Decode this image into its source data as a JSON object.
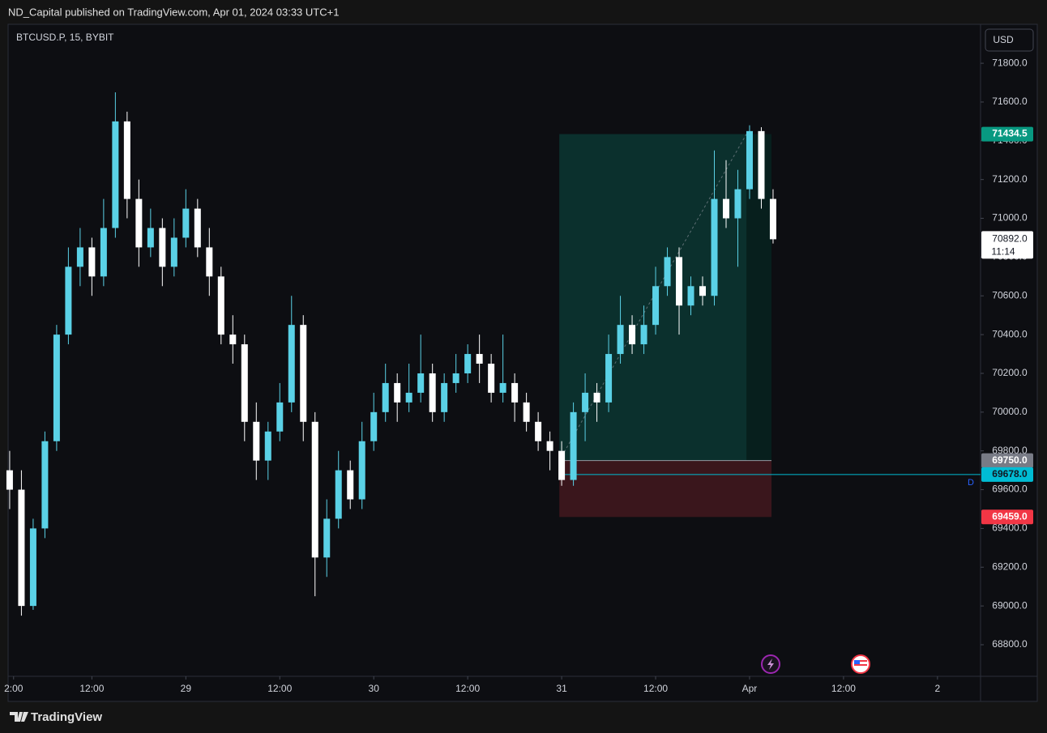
{
  "header": "ND_Capital published on TradingView.com, Apr 01, 2024 03:33 UTC+1",
  "footer": "TradingView",
  "chart_data": {
    "type": "candlestick",
    "symbol": "BTCUSD.P, 15, BYBIT",
    "currency": "USD",
    "up_color": "#5ad1e6",
    "down_color": "#ffffff",
    "grid": false,
    "xlim": [
      -22.7,
      101.5
    ],
    "ylim": [
      68637,
      72001
    ],
    "xticks": [
      {
        "value": -22,
        "label": "2:00"
      },
      {
        "value": -12,
        "label": "12:00"
      },
      {
        "value": 0,
        "label": "29"
      },
      {
        "value": 12,
        "label": "12:00"
      },
      {
        "value": 24,
        "label": "30"
      },
      {
        "value": 36,
        "label": "12:00"
      },
      {
        "value": 48,
        "label": "31"
      },
      {
        "value": 60,
        "label": "12:00"
      },
      {
        "value": 72,
        "label": "Apr"
      },
      {
        "value": 84,
        "label": "12:00"
      },
      {
        "value": 96,
        "label": "2"
      }
    ],
    "yticks": [
      {
        "value": 68800,
        "label": "68800.0"
      },
      {
        "value": 69000,
        "label": "69000.0"
      },
      {
        "value": 69200,
        "label": "69200.0"
      },
      {
        "value": 69400,
        "label": "69400.0"
      },
      {
        "value": 69600,
        "label": "69600.0"
      },
      {
        "value": 69800,
        "label": "69800.0"
      },
      {
        "value": 70000,
        "label": "70000.0"
      },
      {
        "value": 70200,
        "label": "70200.0"
      },
      {
        "value": 70400,
        "label": "70400.0"
      },
      {
        "value": 70600,
        "label": "70600.0"
      },
      {
        "value": 70800,
        "label": "70800.0"
      },
      {
        "value": 71000,
        "label": "71000.0"
      },
      {
        "value": 71200,
        "label": "71200.0"
      },
      {
        "value": 71400,
        "label": "71400.0"
      },
      {
        "value": 71600,
        "label": "71600.0"
      },
      {
        "value": 71800,
        "label": "71800.0"
      }
    ],
    "x": [
      -22.5,
      -21,
      -19.5,
      -18,
      -16.5,
      -15,
      -13.5,
      -12,
      -10.5,
      -9,
      -7.5,
      -6,
      -4.5,
      -3,
      -1.5,
      0,
      1.5,
      3,
      4.5,
      6,
      7.5,
      9,
      10.5,
      12,
      13.5,
      15,
      16.5,
      18,
      19.5,
      21,
      22.5,
      24,
      25.5,
      27,
      28.5,
      30,
      31.5,
      33,
      34.5,
      36,
      37.5,
      39,
      40.5,
      42,
      43.5,
      45,
      46.5,
      48,
      49.5,
      51,
      52.5,
      54,
      55.5,
      57,
      58.5,
      60,
      61.5,
      63,
      64.5,
      66,
      67.5,
      69,
      70.5,
      72,
      73.5,
      75
    ],
    "open": [
      69700,
      69600,
      69000,
      69400,
      69850,
      70400,
      70750,
      70850,
      70700,
      70950,
      71500,
      71100,
      70850,
      70950,
      70750,
      70900,
      71050,
      70850,
      70700,
      70400,
      70350,
      69950,
      69750,
      69900,
      70050,
      70450,
      69950,
      69250,
      69450,
      69700,
      69550,
      69850,
      70000,
      70150,
      70050,
      70100,
      70200,
      70000,
      70150,
      70200,
      70300,
      70250,
      70100,
      70150,
      70050,
      69950,
      69850,
      69800,
      69650,
      70000,
      70100,
      70050,
      70300,
      70450,
      70350,
      70450,
      70650,
      70800,
      70550,
      70650,
      70600,
      71100,
      71000,
      71150,
      71450,
      71100
    ],
    "high": [
      69800,
      69700,
      69450,
      69900,
      70450,
      70850,
      70950,
      70900,
      71100,
      71650,
      71550,
      71200,
      71050,
      71000,
      71000,
      71150,
      71100,
      70950,
      70750,
      70500,
      70400,
      70050,
      69950,
      70150,
      70600,
      70500,
      70000,
      69550,
      69800,
      69750,
      69950,
      70100,
      70250,
      70200,
      70250,
      70400,
      70250,
      70200,
      70300,
      70350,
      70400,
      70300,
      70400,
      70200,
      70100,
      70000,
      69900,
      69850,
      70050,
      70200,
      70150,
      70400,
      70600,
      70500,
      70550,
      70750,
      70850,
      70850,
      70700,
      70700,
      71350,
      71300,
      71250,
      71480,
      71470,
      71150
    ],
    "low": [
      69500,
      68950,
      68980,
      69350,
      69800,
      70350,
      70650,
      70600,
      70650,
      70900,
      71000,
      70750,
      70800,
      70650,
      70700,
      70850,
      70800,
      70600,
      70350,
      70250,
      69850,
      69650,
      69650,
      69850,
      70000,
      69850,
      69050,
      69150,
      69400,
      69500,
      69500,
      69800,
      69950,
      69950,
      70000,
      70050,
      69950,
      69950,
      70100,
      70150,
      70150,
      70050,
      70050,
      69950,
      69900,
      69800,
      69700,
      69620,
      69620,
      69850,
      69950,
      70000,
      70250,
      70300,
      70300,
      70400,
      70600,
      70400,
      70500,
      70550,
      70550,
      70950,
      70750,
      71100,
      71050,
      70870
    ],
    "close": [
      69600,
      69000,
      69400,
      69850,
      70400,
      70750,
      70850,
      70700,
      70950,
      71500,
      71100,
      70850,
      70950,
      70750,
      70900,
      71050,
      70850,
      70700,
      70400,
      70350,
      69950,
      69750,
      69900,
      70050,
      70450,
      69950,
      69250,
      69450,
      69700,
      69550,
      69850,
      70000,
      70150,
      70050,
      70100,
      70200,
      70000,
      70150,
      70200,
      70300,
      70250,
      70100,
      70150,
      70050,
      69950,
      69850,
      69800,
      69650,
      70000,
      70100,
      70050,
      70300,
      70450,
      70350,
      70450,
      70650,
      70800,
      70550,
      70650,
      70600,
      71100,
      71000,
      71150,
      71450,
      71100,
      70892
    ],
    "position": {
      "start": 47.7,
      "end": 74.8,
      "target_hit": 71.6,
      "target": {
        "value": 71434.5,
        "label": "71434.5",
        "color": "#089981"
      },
      "entry": {
        "value": 69750.0,
        "label": "69750.0",
        "color": "#787b86"
      },
      "stop": {
        "value": 69459.0,
        "label": "69459.0",
        "color": "#f23645"
      }
    },
    "level": {
      "value": 69678.0,
      "label": "69678.0",
      "color": "#00bcd4",
      "tag": "D"
    },
    "last_price": {
      "value": 70892.0,
      "label": "70892.0",
      "countdown": "11:14"
    }
  }
}
